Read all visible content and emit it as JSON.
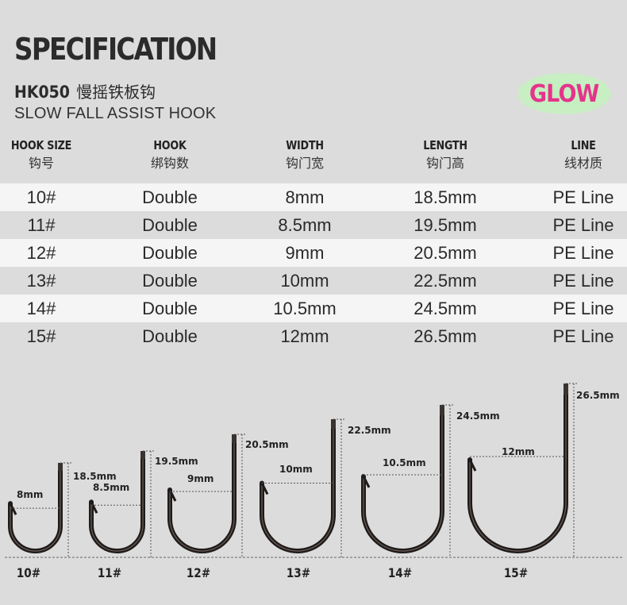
{
  "header": {
    "title": "SPECIFICATION",
    "model_code": "HK050",
    "model_name_cn": "慢摇铁板钩",
    "subtitle": "SLOW FALL ASSIST HOOK",
    "badge": "GLOW",
    "badge_color": "#e5348c"
  },
  "table": {
    "columns": [
      {
        "en": "HOOK SIZE",
        "cn": "钩号"
      },
      {
        "en": "HOOK",
        "cn": "绑钩数"
      },
      {
        "en": "WIDTH",
        "cn": "钩门宽"
      },
      {
        "en": "LENGTH",
        "cn": "钩门高"
      },
      {
        "en": "LINE",
        "cn": "线材质"
      }
    ],
    "rows": [
      [
        "10#",
        "Double",
        "8mm",
        "18.5mm",
        "PE Line"
      ],
      [
        "11#",
        "Double",
        "8.5mm",
        "19.5mm",
        "PE Line"
      ],
      [
        "12#",
        "Double",
        "9mm",
        "20.5mm",
        "PE Line"
      ],
      [
        "13#",
        "Double",
        "10mm",
        "22.5mm",
        "PE Line"
      ],
      [
        "14#",
        "Double",
        "10.5mm",
        "24.5mm",
        "PE Line"
      ],
      [
        "15#",
        "Double",
        "12mm",
        "26.5mm",
        "PE Line"
      ]
    ]
  },
  "diagram": {
    "hooks": [
      {
        "size": "10#",
        "width": "8mm",
        "length": "18.5mm"
      },
      {
        "size": "11#",
        "width": "8.5mm",
        "length": "19.5mm"
      },
      {
        "size": "12#",
        "width": "9mm",
        "length": "20.5mm"
      },
      {
        "size": "13#",
        "width": "10mm",
        "length": "22.5mm"
      },
      {
        "size": "14#",
        "width": "10.5mm",
        "length": "24.5mm"
      },
      {
        "size": "15#",
        "width": "12mm",
        "length": "26.5mm"
      }
    ]
  }
}
